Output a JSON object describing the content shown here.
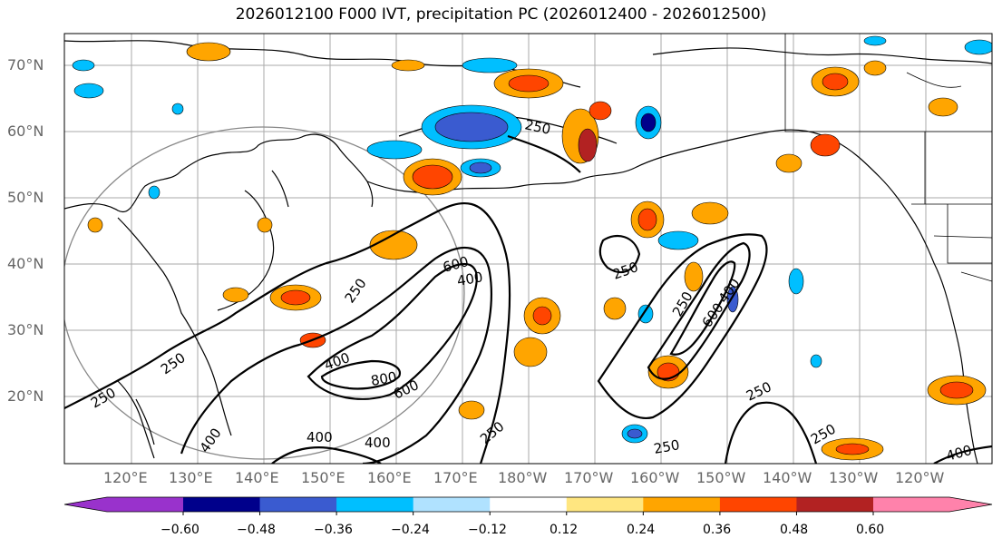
{
  "title": "2026012100 F000 IVT, precipitation PC (2026012400 - 2026012500)",
  "lat_labels": [
    "70°N",
    "60°N",
    "50°N",
    "40°N",
    "30°N",
    "20°N"
  ],
  "lon_labels": [
    "120°E",
    "130°E",
    "140°E",
    "150°E",
    "160°E",
    "170°E",
    "180°W",
    "170°W",
    "160°W",
    "150°W",
    "140°W",
    "130°W",
    "120°W"
  ],
  "contour_labels": [
    "250",
    "250",
    "250",
    "250",
    "250",
    "250",
    "250",
    "250",
    "250",
    "250",
    "400",
    "400",
    "400",
    "400",
    "400",
    "400",
    "400",
    "600",
    "600",
    "600",
    "800"
  ],
  "colorbar": {
    "ticks": [
      "−0.60",
      "−0.48",
      "−0.36",
      "−0.24",
      "−0.12",
      "0.12",
      "0.24",
      "0.36",
      "0.48",
      "0.60"
    ],
    "colors": [
      "#9932cc",
      "#00008b",
      "#3a5bd0",
      "#00bfff",
      "#b0e2ff",
      "#ffffff",
      "#ffe680",
      "#ffa500",
      "#ff4500",
      "#b22222",
      "#ff82ab"
    ]
  }
}
